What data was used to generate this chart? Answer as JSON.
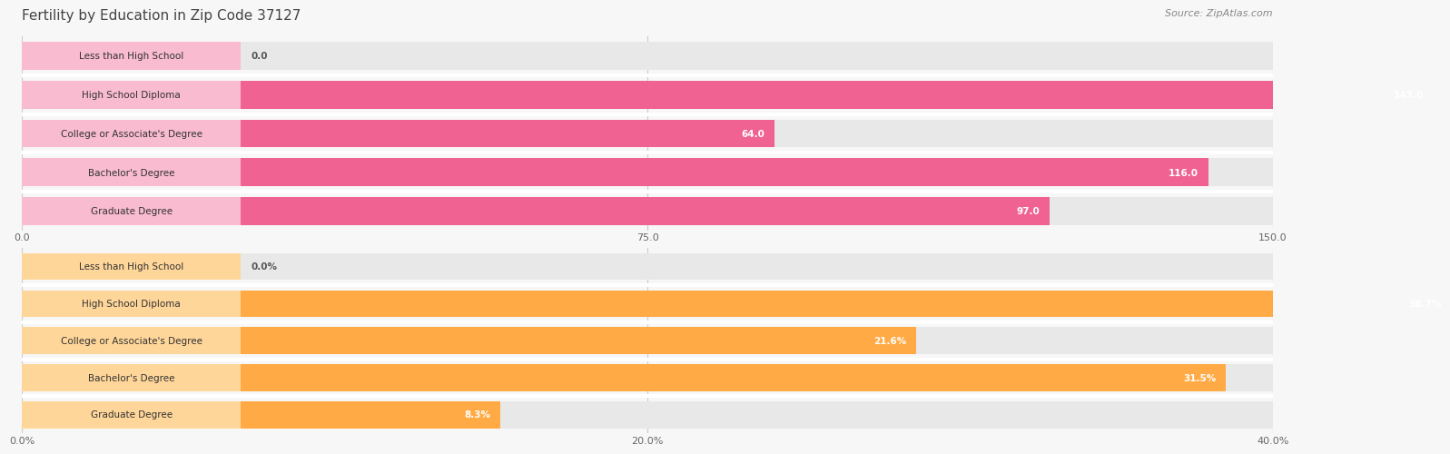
{
  "title": "Fertility by Education in Zip Code 37127",
  "source": "Source: ZipAtlas.com",
  "top_chart": {
    "categories": [
      "Less than High School",
      "High School Diploma",
      "College or Associate's Degree",
      "Bachelor's Degree",
      "Graduate Degree"
    ],
    "values": [
      0.0,
      143.0,
      64.0,
      116.0,
      97.0
    ],
    "xlim": [
      0,
      150
    ],
    "xticks": [
      0.0,
      75.0,
      150.0
    ],
    "bar_color": "#F06292",
    "bar_color_light": "#F8BBD0",
    "bar_bg_color": "#eeeeee"
  },
  "bottom_chart": {
    "categories": [
      "Less than High School",
      "High School Diploma",
      "College or Associate's Degree",
      "Bachelor's Degree",
      "Graduate Degree"
    ],
    "values": [
      0.0,
      38.7,
      21.6,
      31.5,
      8.3
    ],
    "xlim": [
      0,
      40
    ],
    "xticks": [
      0.0,
      20.0,
      40.0
    ],
    "bar_color": "#FFAA44",
    "bar_color_light": "#FFD699",
    "bar_bg_color": "#eeeeee"
  },
  "fig_bg_color": "#f7f7f7",
  "title_color": "#444444",
  "title_fontsize": 11,
  "source_fontsize": 8,
  "category_fontsize": 7.5,
  "value_fontsize": 7.5,
  "tick_fontsize": 8
}
